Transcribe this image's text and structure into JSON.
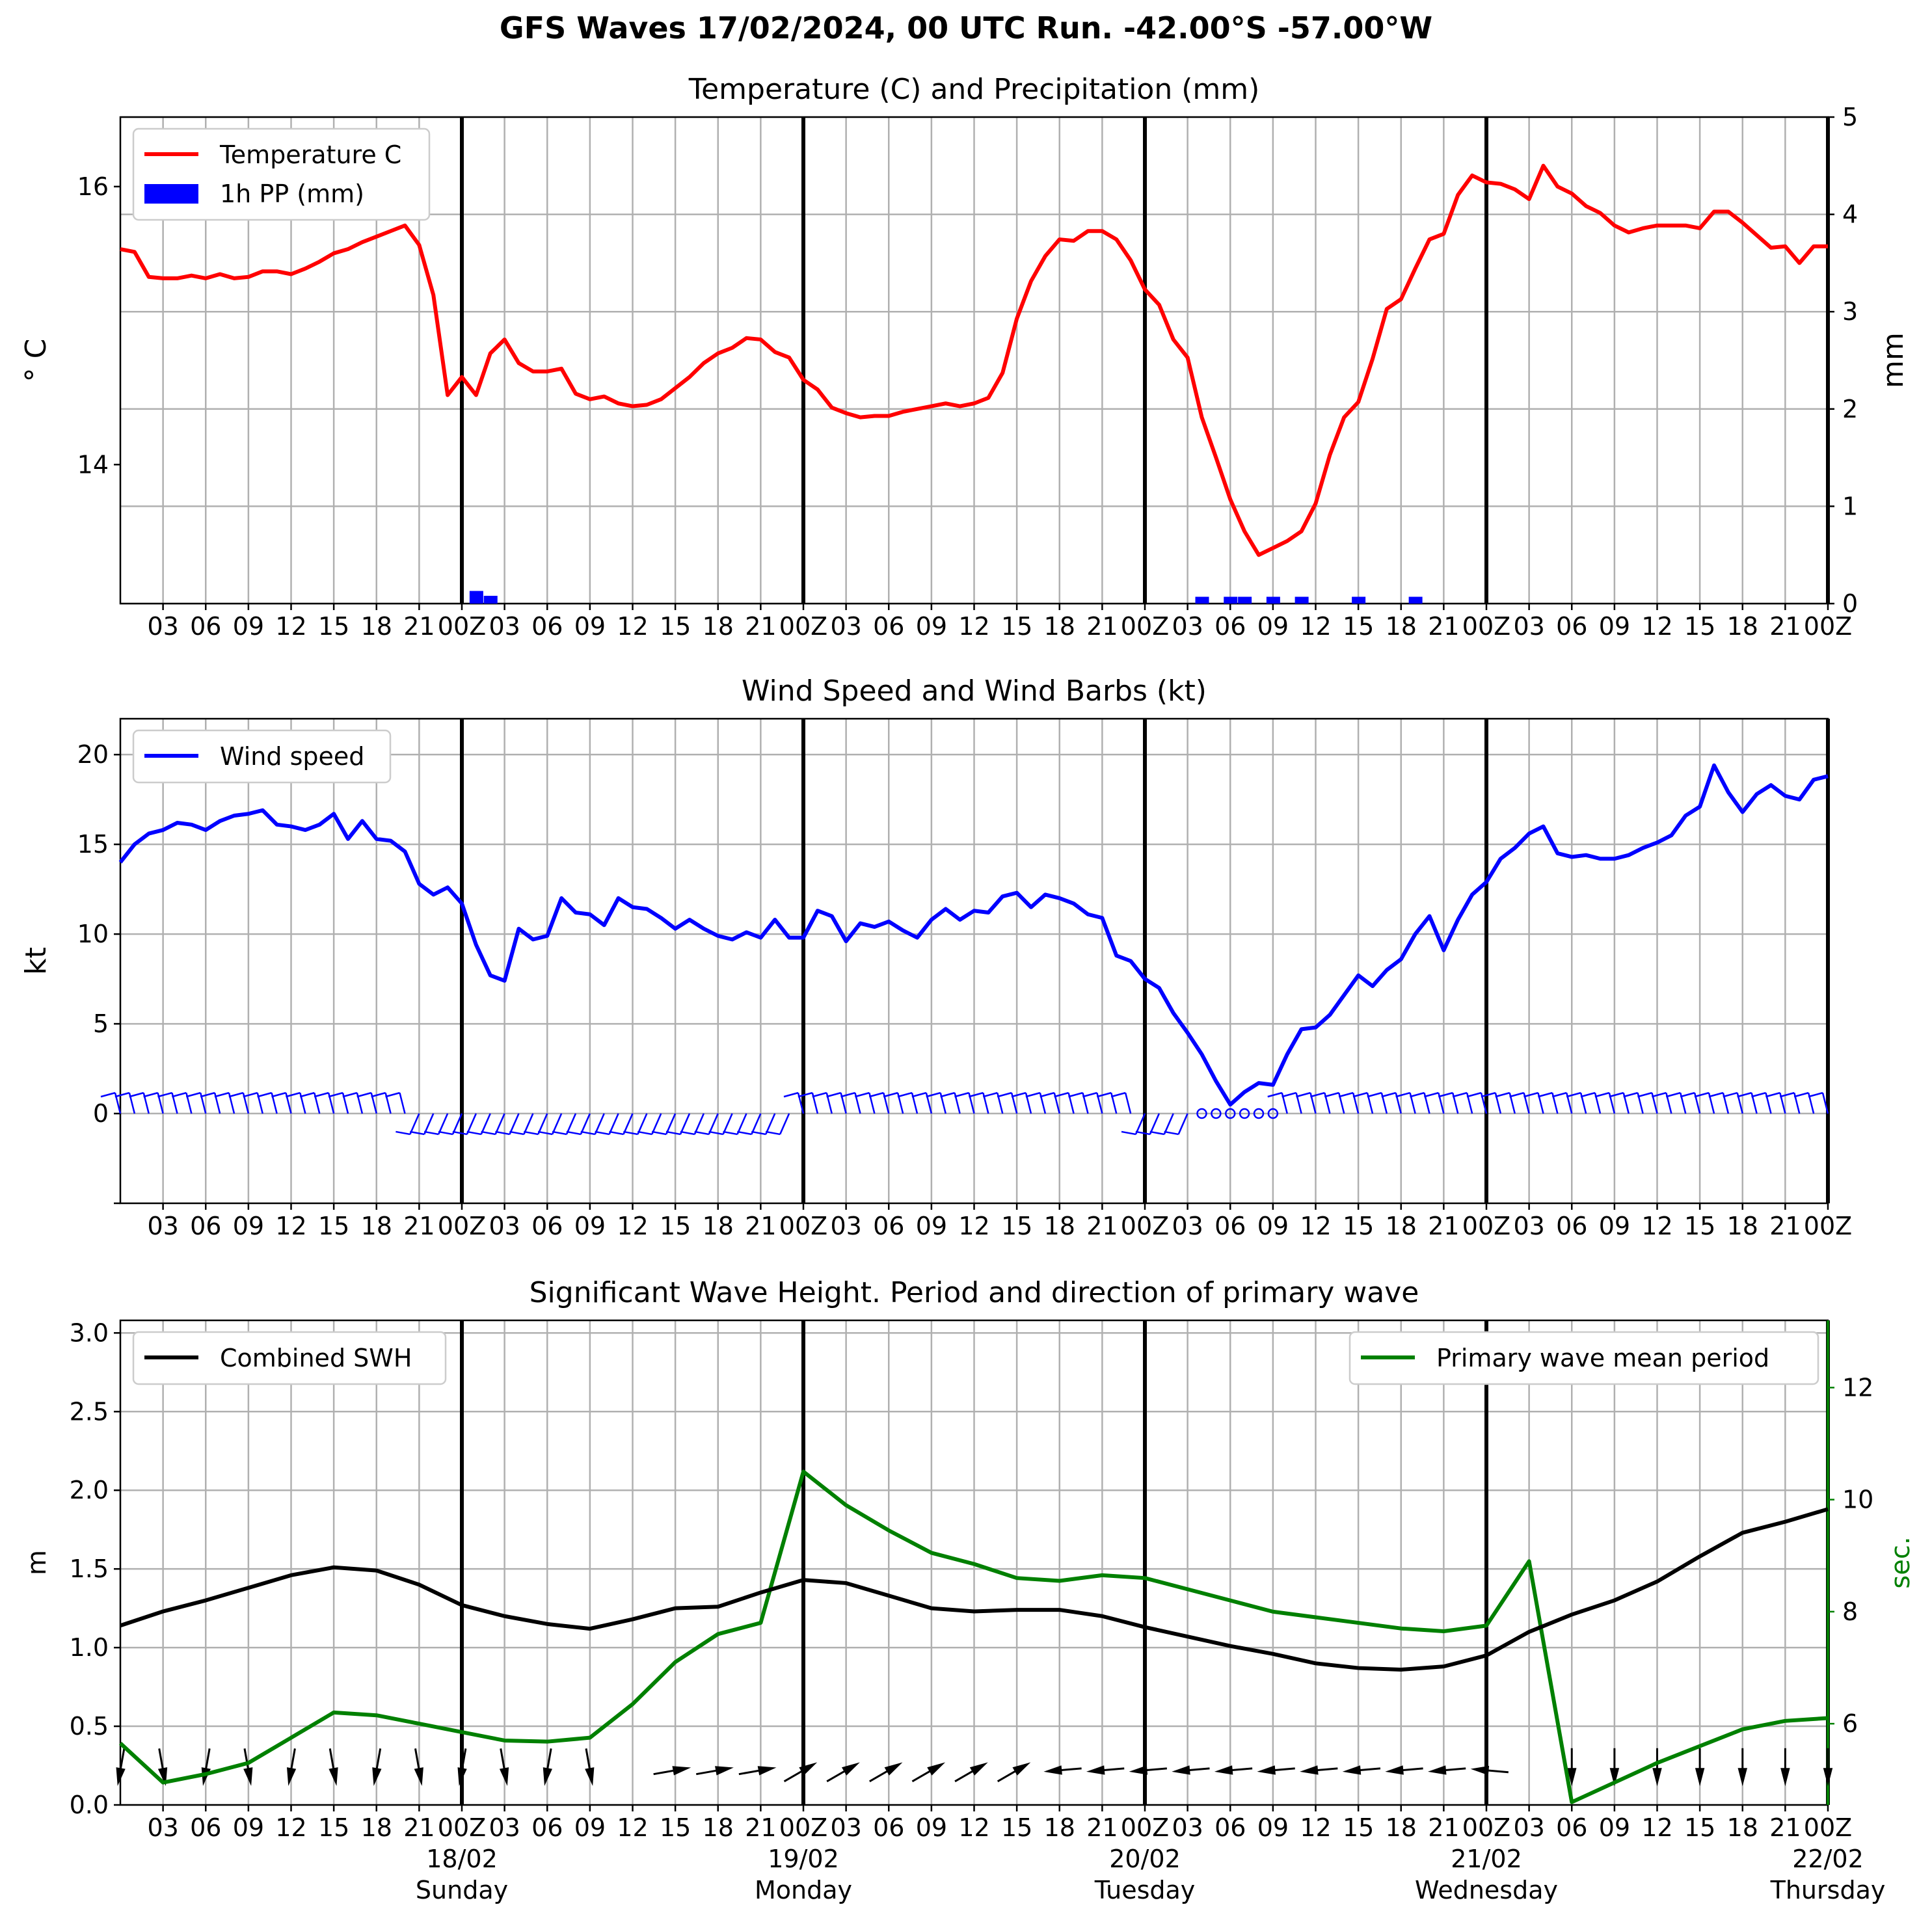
{
  "figure": {
    "title": "GFS Waves 17/02/2024, 00 UTC Run. -42.00°S -57.00°W"
  },
  "colors": {
    "temperature": "#ff0000",
    "precip": "#0000ff",
    "wind": "#0000ff",
    "swh": "#000000",
    "period": "#008000",
    "grid": "#b0b0b0"
  },
  "x_ticks": [
    "03",
    "06",
    "09",
    "12",
    "15",
    "18",
    "21",
    "00Z",
    "03",
    "06",
    "09",
    "12",
    "15",
    "18",
    "21",
    "00Z",
    "03",
    "06",
    "09",
    "12",
    "15",
    "18",
    "21",
    "00Z",
    "03",
    "06",
    "09",
    "12",
    "15",
    "18",
    "21",
    "00Z",
    "03",
    "06",
    "09",
    "12",
    "15",
    "18",
    "21",
    "00Z"
  ],
  "day_labels": [
    {
      "date": "18/02",
      "day": "Sunday"
    },
    {
      "date": "19/02",
      "day": "Monday"
    },
    {
      "date": "20/02",
      "day": "Tuesday"
    },
    {
      "date": "21/02",
      "day": "Wednesday"
    },
    {
      "date": "22/02",
      "day": "Thursday"
    }
  ],
  "chart_data": [
    {
      "type": "line",
      "title": "Temperature (C) and Precipitation (mm)",
      "ylabel": "° C",
      "y2label": "mm",
      "ylim": [
        13.0,
        16.5
      ],
      "y2lim": [
        0,
        5
      ],
      "yticks": [
        "14",
        "16"
      ],
      "y2ticks": [
        "0",
        "1",
        "2",
        "3",
        "4",
        "5"
      ],
      "legend": {
        "position": "top-left",
        "entries": [
          "Temperature C",
          "1h PP (mm)"
        ]
      },
      "grid": true,
      "series": [
        {
          "name": "Temperature C",
          "x_hours": [
            0,
            1,
            2,
            3,
            4,
            5,
            6,
            7,
            8,
            9,
            10,
            11,
            12,
            13,
            14,
            15,
            16,
            17,
            18,
            19,
            20,
            21,
            22,
            23,
            24,
            25,
            26,
            27,
            28,
            29,
            30,
            31,
            32,
            33,
            34,
            35,
            36,
            37,
            38,
            39,
            40,
            41,
            42,
            43,
            44,
            45,
            46,
            47,
            48,
            49,
            50,
            51,
            52,
            53,
            54,
            55,
            56,
            57,
            58,
            59,
            60,
            61,
            62,
            63,
            64,
            65,
            66,
            67,
            68,
            69,
            70,
            71,
            72,
            73,
            74,
            75,
            76,
            77,
            78,
            79,
            80,
            81,
            82,
            83,
            84,
            85,
            86,
            87,
            88,
            89,
            90,
            91,
            92,
            93,
            94,
            95,
            96,
            97,
            98,
            99,
            100,
            101,
            102,
            103,
            104,
            105,
            106,
            107,
            108,
            109,
            110,
            111,
            112,
            113,
            114,
            115,
            116,
            117,
            118,
            119,
            120
          ],
          "values": [
            15.55,
            15.53,
            15.35,
            15.34,
            15.34,
            15.36,
            15.34,
            15.37,
            15.34,
            15.35,
            15.39,
            15.39,
            15.37,
            15.41,
            15.46,
            15.52,
            15.55,
            15.6,
            15.64,
            15.68,
            15.72,
            15.58,
            15.22,
            14.5,
            14.63,
            14.5,
            14.8,
            14.9,
            14.73,
            14.67,
            14.67,
            14.69,
            14.51,
            14.47,
            14.49,
            14.44,
            14.42,
            14.43,
            14.47,
            14.55,
            14.63,
            14.73,
            14.8,
            14.84,
            14.91,
            14.9,
            14.81,
            14.77,
            14.61,
            14.54,
            14.41,
            14.37,
            14.34,
            14.35,
            14.35,
            14.38,
            14.4,
            14.42,
            14.44,
            14.42,
            14.44,
            14.48,
            14.66,
            15.05,
            15.32,
            15.5,
            15.62,
            15.61,
            15.68,
            15.68,
            15.62,
            15.47,
            15.26,
            15.15,
            14.9,
            14.77,
            14.34,
            14.05,
            13.75,
            13.52,
            13.35,
            13.4,
            13.45,
            13.52,
            13.72,
            14.07,
            14.34,
            14.45,
            14.76,
            15.12,
            15.19,
            15.41,
            15.62,
            15.66,
            15.94,
            16.08,
            16.03,
            16.02,
            15.98,
            15.91,
            16.15,
            16.0,
            15.95,
            15.86,
            15.81,
            15.72,
            15.67,
            15.7,
            15.72,
            15.72,
            15.72,
            15.7,
            15.82,
            15.82,
            15.74,
            15.65,
            15.56,
            15.57,
            15.45,
            15.57,
            15.57
          ]
        },
        {
          "name": "1h PP (mm)",
          "axis": "right",
          "bars": [
            [
              25,
              0.13
            ],
            [
              26,
              0.08
            ],
            [
              76,
              0.07
            ],
            [
              78,
              0.07
            ],
            [
              79,
              0.07
            ],
            [
              81,
              0.07
            ],
            [
              83,
              0.07
            ],
            [
              87,
              0.07
            ],
            [
              91,
              0.07
            ]
          ]
        }
      ]
    },
    {
      "type": "line",
      "title": "Wind Speed and Wind Barbs (kt)",
      "ylabel": "kt",
      "ylim": [
        -5,
        22
      ],
      "yticks": [
        "0",
        "5",
        "10",
        "15",
        "20"
      ],
      "legend": {
        "position": "top-left",
        "entries": [
          "Wind speed"
        ]
      },
      "grid": true,
      "series": [
        {
          "name": "Wind speed",
          "x_hours": [
            0,
            1,
            2,
            3,
            4,
            5,
            6,
            7,
            8,
            9,
            10,
            11,
            12,
            13,
            14,
            15,
            16,
            17,
            18,
            19,
            20,
            21,
            22,
            23,
            24,
            25,
            26,
            27,
            28,
            29,
            30,
            31,
            32,
            33,
            34,
            35,
            36,
            37,
            38,
            39,
            40,
            41,
            42,
            43,
            44,
            45,
            46,
            47,
            48,
            49,
            50,
            51,
            52,
            53,
            54,
            55,
            56,
            57,
            58,
            59,
            60,
            61,
            62,
            63,
            64,
            65,
            66,
            67,
            68,
            69,
            70,
            71,
            72,
            73,
            74,
            75,
            76,
            77,
            78,
            79,
            80,
            81,
            82,
            83,
            84,
            85,
            86,
            87,
            88,
            89,
            90,
            91,
            92,
            93,
            94,
            95,
            96,
            97,
            98,
            99,
            100,
            101,
            102,
            103,
            104,
            105,
            106,
            107,
            108,
            109,
            110,
            111,
            112,
            113,
            114,
            115,
            116,
            117,
            118,
            119,
            120
          ],
          "values": [
            14.0,
            15.0,
            15.6,
            15.8,
            16.2,
            16.1,
            15.8,
            16.3,
            16.6,
            16.7,
            16.9,
            16.1,
            16.0,
            15.8,
            16.1,
            16.7,
            15.3,
            16.3,
            15.3,
            15.2,
            14.6,
            12.8,
            12.2,
            12.6,
            11.7,
            9.4,
            7.7,
            7.4,
            10.3,
            9.7,
            9.9,
            12.0,
            11.2,
            11.1,
            10.5,
            12.0,
            11.5,
            11.4,
            10.9,
            10.3,
            10.8,
            10.3,
            9.9,
            9.7,
            10.1,
            9.8,
            10.8,
            9.8,
            9.8,
            11.3,
            11.0,
            9.6,
            10.6,
            10.4,
            10.7,
            10.2,
            9.8,
            10.8,
            11.4,
            10.8,
            11.3,
            11.2,
            12.1,
            12.3,
            11.5,
            12.2,
            12.0,
            11.7,
            11.1,
            10.9,
            8.8,
            8.5,
            7.5,
            7.0,
            5.6,
            4.5,
            3.3,
            1.8,
            0.5,
            1.2,
            1.7,
            1.6,
            3.3,
            4.7,
            4.8,
            5.5,
            6.6,
            7.7,
            7.1,
            8.0,
            8.6,
            10.0,
            11.0,
            9.1,
            10.8,
            12.2,
            12.9,
            14.2,
            14.8,
            15.6,
            16.0,
            14.5,
            14.3,
            14.4,
            14.2,
            14.2,
            14.4,
            14.8,
            15.1,
            15.5,
            16.6,
            17.1,
            19.4,
            17.9,
            16.8,
            17.8,
            18.3,
            17.7,
            17.5,
            18.6,
            18.8
          ]
        }
      ]
    },
    {
      "type": "line",
      "title": "Significant Wave Height. Period and direction of primary wave",
      "ylabel": "m",
      "y2label": "sec.",
      "ylim": [
        0,
        3.08
      ],
      "y2lim": [
        4.55,
        13.2
      ],
      "yticks": [
        "0.0",
        "0.5",
        "1.0",
        "1.5",
        "2.0",
        "2.5",
        "3.0"
      ],
      "y2ticks": [
        "6",
        "8",
        "10",
        "12"
      ],
      "legend": {
        "position": "top-left / top-right",
        "entries": [
          "Combined SWH",
          "Primary wave mean period"
        ]
      },
      "grid": true,
      "series": [
        {
          "name": "Combined SWH",
          "x_hours": [
            0,
            3,
            6,
            9,
            12,
            15,
            18,
            21,
            24,
            27,
            30,
            33,
            36,
            39,
            42,
            45,
            48,
            51,
            54,
            57,
            60,
            63,
            66,
            69,
            72,
            75,
            78,
            81,
            84,
            87,
            90,
            93,
            96,
            99,
            102,
            105,
            108,
            111,
            114,
            117,
            120
          ],
          "values": [
            1.14,
            1.23,
            1.3,
            1.38,
            1.46,
            1.51,
            1.49,
            1.4,
            1.27,
            1.2,
            1.15,
            1.12,
            1.18,
            1.25,
            1.26,
            1.35,
            1.43,
            1.41,
            1.33,
            1.25,
            1.23,
            1.24,
            1.24,
            1.2,
            1.13,
            1.07,
            1.01,
            0.96,
            0.9,
            0.87,
            0.86,
            0.88,
            0.95,
            1.1,
            1.21,
            1.3,
            1.42,
            1.58,
            1.73,
            1.8,
            1.88
          ]
        },
        {
          "name": "Primary wave mean period",
          "axis": "right",
          "x_hours": [
            0,
            3,
            6,
            9,
            12,
            15,
            18,
            21,
            24,
            27,
            30,
            33,
            36,
            39,
            42,
            45,
            48,
            51,
            54,
            57,
            60,
            63,
            66,
            69,
            72,
            75,
            78,
            81,
            84,
            87,
            90,
            93,
            96,
            99,
            102,
            105,
            108,
            111,
            114,
            117,
            120
          ],
          "values": [
            5.65,
            4.95,
            5.1,
            5.3,
            5.75,
            6.2,
            6.15,
            6.0,
            5.85,
            5.7,
            5.68,
            5.75,
            6.35,
            7.1,
            7.6,
            7.8,
            10.5,
            9.9,
            9.45,
            9.05,
            8.85,
            8.6,
            8.55,
            8.65,
            8.6,
            8.4,
            8.2,
            8.0,
            7.9,
            7.8,
            7.7,
            7.65,
            7.75,
            8.9,
            4.6,
            4.95,
            5.3,
            5.6,
            5.9,
            6.05,
            6.1
          ]
        }
      ]
    }
  ]
}
